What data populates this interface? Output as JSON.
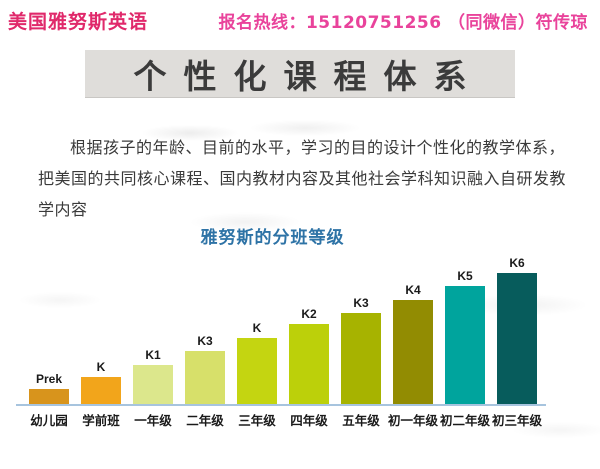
{
  "header": {
    "brand": "美国雅努斯英语",
    "hotline": "报名热线：15120751256 （同微信）符传琼"
  },
  "banner": {
    "title": "个性化课程体系"
  },
  "intro": {
    "text": "根据孩子的年龄、目前的水平，学习的目的设计个性化的教学体系，把美国的共同核心课程、国内教材内容及其他社会学科知识融入自研发教学内容"
  },
  "chart_data": {
    "type": "bar",
    "title": "雅努斯的分班等级",
    "categories": [
      "幼儿园",
      "学前班",
      "一年级",
      "二年级",
      "三年级",
      "四年级",
      "五年级",
      "初一年级",
      "初二年级",
      "初三年级"
    ],
    "bar_labels": [
      "Prek",
      "K",
      "K1",
      "K3",
      "K",
      "K2",
      "K3",
      "K4",
      "K5",
      "K6"
    ],
    "values": [
      15,
      27,
      39,
      53,
      66,
      80,
      91,
      104,
      118,
      131
    ],
    "colors": [
      "#D8941C",
      "#F2A51B",
      "#DCE78C",
      "#D7E06A",
      "#C4D511",
      "#BCD00A",
      "#A7B300",
      "#928C02",
      "#00A49D",
      "#075C5C"
    ],
    "xlabel": "",
    "ylabel": "",
    "y_axis_shown": false,
    "grid": false,
    "legend": false
  },
  "colors": {
    "brand": "#E0296B",
    "hotline": "#E9439B",
    "chart_title": "#2E73A6",
    "banner_bg": "#DFDDDA",
    "banner_text": "#3B3B3B",
    "body_text": "#3A3A3A",
    "axis_line": "#A7C4DE",
    "bar_label": "#1A1A1A"
  }
}
